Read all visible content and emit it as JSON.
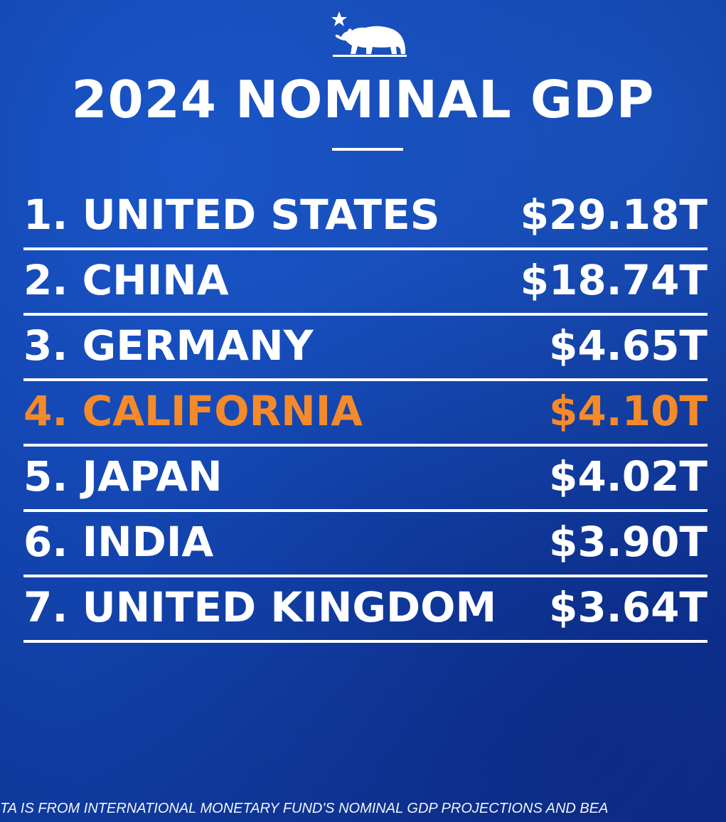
{
  "logo": {
    "icon": "california-bear-with-star-icon"
  },
  "chart_data": {
    "type": "table",
    "title": "2024 NOMINAL GDP",
    "rows": [
      {
        "rank": 1,
        "label": "1. UNITED STATES",
        "country": "UNITED STATES",
        "value": 29.18,
        "value_label": "$29.18T",
        "highlight": false
      },
      {
        "rank": 2,
        "label": "2. CHINA",
        "country": "CHINA",
        "value": 18.74,
        "value_label": "$18.74T",
        "highlight": false
      },
      {
        "rank": 3,
        "label": "3. GERMANY",
        "country": "GERMANY",
        "value": 4.65,
        "value_label": "$4.65T",
        "highlight": false
      },
      {
        "rank": 4,
        "label": "4. CALIFORNIA",
        "country": "CALIFORNIA",
        "value": 4.1,
        "value_label": "$4.10T",
        "highlight": true
      },
      {
        "rank": 5,
        "label": "5. JAPAN",
        "country": "JAPAN",
        "value": 4.02,
        "value_label": "$4.02T",
        "highlight": false
      },
      {
        "rank": 6,
        "label": "6. INDIA",
        "country": "INDIA",
        "value": 3.9,
        "value_label": "$3.90T",
        "highlight": false
      },
      {
        "rank": 7,
        "label": "7. UNITED KINGDOM",
        "country": "UNITED KINGDOM",
        "value": 3.64,
        "value_label": "$3.64T",
        "highlight": false
      }
    ],
    "footnote": "TA IS FROM INTERNATIONAL MONETARY FUND'S NOMINAL GDP PROJECTIONS AND BEA"
  },
  "colors": {
    "background": "#1448b4",
    "text": "#ffffff",
    "highlight": "#f58a2a",
    "divider": "#ffffff"
  }
}
